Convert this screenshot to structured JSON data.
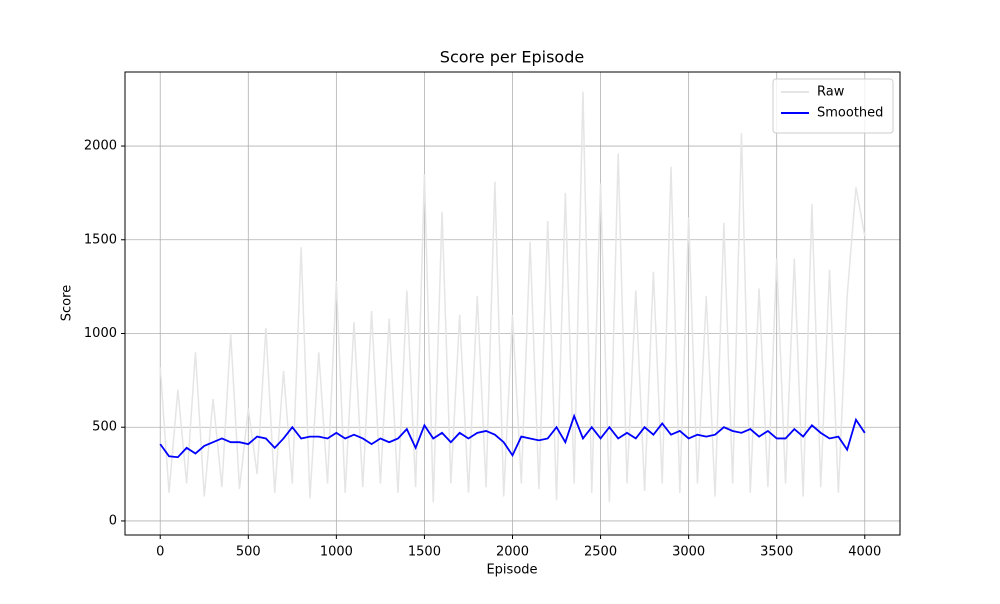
{
  "chart_data": {
    "type": "line",
    "title": "Score per Episode",
    "x_label": "Episode",
    "y_label": "Score",
    "x": [
      0,
      50,
      100,
      150,
      200,
      250,
      300,
      350,
      400,
      450,
      500,
      550,
      600,
      650,
      700,
      750,
      800,
      850,
      900,
      950,
      1000,
      1050,
      1100,
      1150,
      1200,
      1250,
      1300,
      1350,
      1400,
      1450,
      1500,
      1550,
      1600,
      1650,
      1700,
      1750,
      1800,
      1850,
      1900,
      1950,
      2000,
      2050,
      2100,
      2150,
      2200,
      2250,
      2300,
      2350,
      2400,
      2450,
      2500,
      2550,
      2600,
      2650,
      2700,
      2750,
      2800,
      2850,
      2900,
      2950,
      3000,
      3050,
      3100,
      3150,
      3200,
      3250,
      3300,
      3350,
      3400,
      3450,
      3500,
      3550,
      3600,
      3650,
      3700,
      3750,
      3800,
      3850,
      3900,
      3950,
      4000
    ],
    "series": [
      {
        "name": "Raw",
        "color": "#e5e5e5",
        "values": [
          820,
          150,
          700,
          200,
          900,
          130,
          650,
          180,
          1000,
          170,
          600,
          250,
          1030,
          150,
          800,
          200,
          1460,
          120,
          900,
          200,
          1280,
          150,
          1060,
          180,
          1120,
          200,
          1080,
          150,
          1230,
          180,
          1850,
          100,
          1650,
          200,
          1100,
          150,
          1200,
          180,
          1810,
          130,
          1100,
          200,
          1490,
          170,
          1600,
          110,
          1750,
          200,
          2290,
          150,
          1800,
          100,
          1960,
          200,
          1230,
          160,
          1330,
          200,
          1890,
          150,
          1620,
          200,
          1200,
          130,
          1590,
          200,
          2070,
          150,
          1240,
          180,
          1400,
          200,
          1400,
          130,
          1690,
          180,
          1340,
          150,
          1200,
          1780,
          1520
        ]
      },
      {
        "name": "Smoothed",
        "color": "#0000ff",
        "values": [
          410,
          345,
          340,
          390,
          360,
          400,
          420,
          440,
          420,
          420,
          410,
          450,
          440,
          390,
          440,
          500,
          440,
          450,
          450,
          440,
          470,
          440,
          460,
          440,
          410,
          440,
          420,
          440,
          490,
          390,
          510,
          440,
          470,
          420,
          470,
          440,
          470,
          480,
          460,
          420,
          350,
          450,
          440,
          430,
          440,
          500,
          420,
          560,
          440,
          500,
          440,
          500,
          440,
          470,
          440,
          500,
          460,
          520,
          460,
          480,
          440,
          460,
          450,
          460,
          500,
          480,
          470,
          490,
          450,
          480,
          440,
          440,
          490,
          450,
          510,
          470,
          440,
          450,
          380,
          540,
          470
        ]
      }
    ],
    "xlim": [
      -200,
      4200
    ],
    "ylim": [
      -75,
      2395
    ],
    "xticks": [
      0,
      500,
      1000,
      1500,
      2000,
      2500,
      3000,
      3500,
      4000
    ],
    "yticks": [
      0,
      500,
      1000,
      1500,
      2000
    ],
    "grid": true,
    "legend": "upper right"
  }
}
